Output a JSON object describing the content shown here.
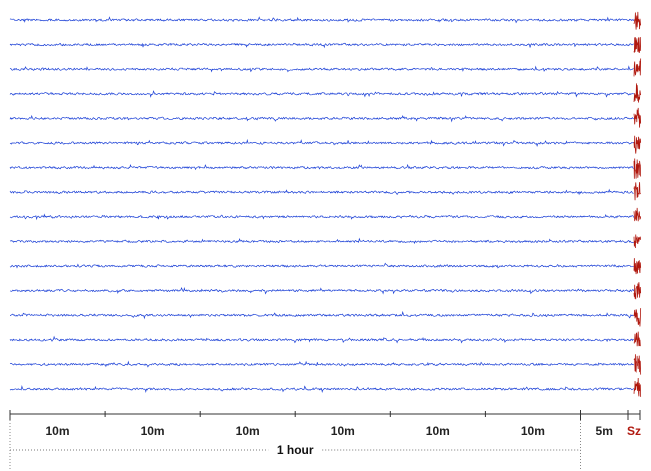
{
  "chart_data": {
    "type": "line",
    "title": "",
    "xlabel": "",
    "ylabel": "",
    "channel_count": 16,
    "series_color": "#1a3fd6",
    "seizure_color": "#b0180e",
    "axis_color": "#333333",
    "x_segments": [
      {
        "label": "10m",
        "minutes": 10
      },
      {
        "label": "10m",
        "minutes": 10
      },
      {
        "label": "10m",
        "minutes": 10
      },
      {
        "label": "10m",
        "minutes": 10
      },
      {
        "label": "10m",
        "minutes": 10
      },
      {
        "label": "10m",
        "minutes": 10
      },
      {
        "label": "5m",
        "minutes": 5
      },
      {
        "label": "Sz",
        "minutes": 1
      }
    ],
    "span_label": "1 hour",
    "seizure_label": "Sz"
  }
}
